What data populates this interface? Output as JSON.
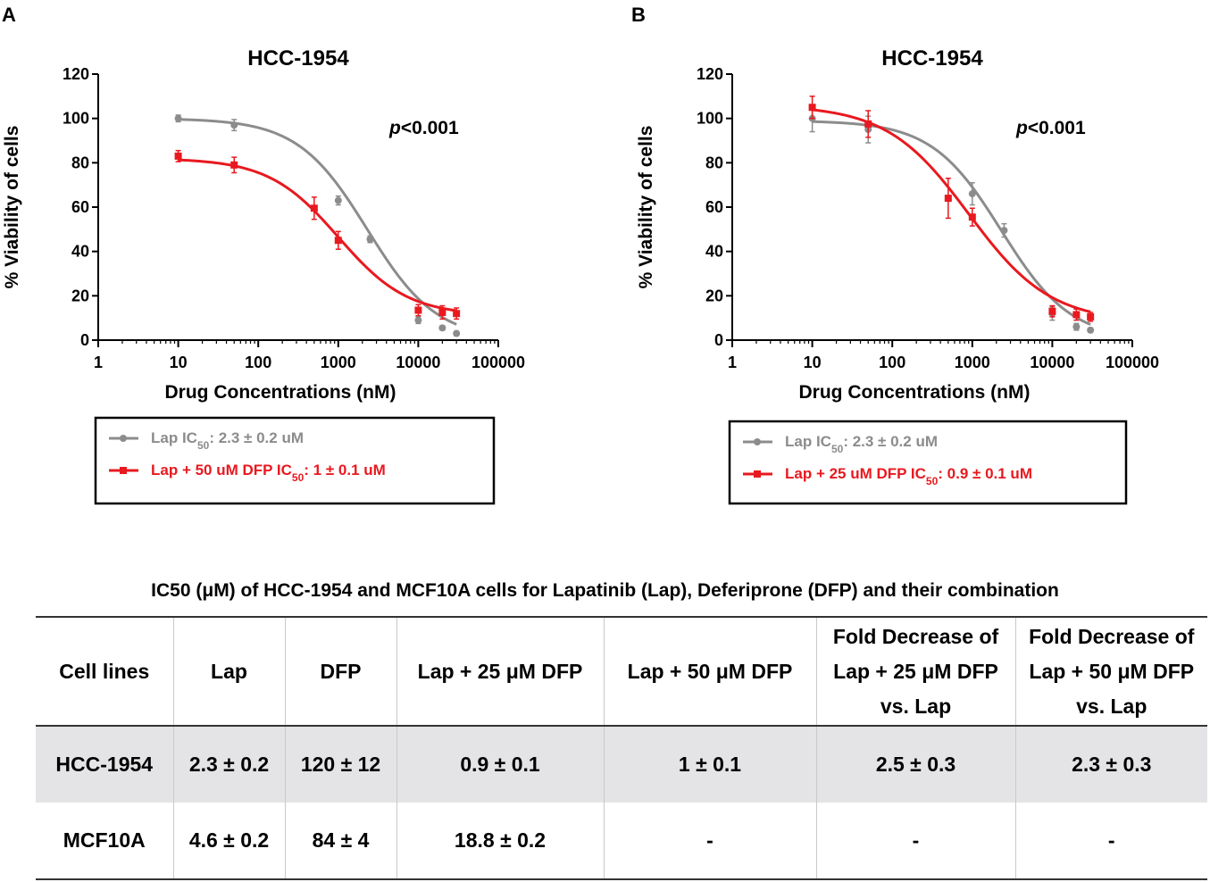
{
  "panels": [
    {
      "letter": "A",
      "title": "HCC-1954",
      "p_value_italic": "p",
      "p_value_rest": "<0.001",
      "xlabel": "Drug Concentrations (nM)",
      "ylabel": "% Viability of cells",
      "x_ticks": [
        "1",
        "10",
        "100",
        "1000",
        "10000",
        "100000"
      ],
      "y_ticks": [
        "0",
        "20",
        "40",
        "60",
        "80",
        "100",
        "120"
      ],
      "legend": [
        {
          "pre": "Lap IC",
          "sub": "50",
          "post": ": 2.3 ± 0.2 uM",
          "color": "#8c8c8c",
          "marker": "circle"
        },
        {
          "pre": "Lap + 50 uM DFP IC",
          "sub": "50",
          "post": ": 1 ± 0.1 uM",
          "color": "#e8191f",
          "marker": "square"
        }
      ]
    },
    {
      "letter": "B",
      "title": "HCC-1954",
      "p_value_italic": "p",
      "p_value_rest": "<0.001",
      "xlabel": "Drug Concentrations (nM)",
      "ylabel": "% Viability of cells",
      "x_ticks": [
        "1",
        "10",
        "100",
        "1000",
        "10000",
        "100000"
      ],
      "y_ticks": [
        "0",
        "20",
        "40",
        "60",
        "80",
        "100",
        "120"
      ],
      "legend": [
        {
          "pre": "Lap IC",
          "sub": "50",
          "post": ": 2.3 ± 0.2 uM",
          "color": "#8c8c8c",
          "marker": "circle"
        },
        {
          "pre": "Lap + 25 uM DFP IC",
          "sub": "50",
          "post": ": 0.9 ± 0.1 uM",
          "color": "#e8191f",
          "marker": "square"
        }
      ]
    }
  ],
  "chart_data": [
    {
      "type": "scatter",
      "title": "HCC-1954",
      "xlabel": "Drug Concentrations (nM)",
      "ylabel": "% Viability of cells",
      "xscale": "log",
      "xlim": [
        1,
        100000
      ],
      "ylim": [
        0,
        120
      ],
      "annotation": "p<0.001",
      "series": [
        {
          "name": "Lap",
          "color": "#8c8c8c",
          "marker": "circle",
          "x": [
            10,
            50,
            1000,
            2500,
            10000,
            20000,
            30000
          ],
          "y": [
            100,
            97,
            63,
            45.5,
            9,
            5.5,
            3
          ],
          "err": [
            1.5,
            2.5,
            2,
            1.5,
            1.5,
            1,
            1
          ],
          "fit": {
            "top": 100,
            "bottom": 0,
            "ic50_nM": 2300,
            "hill": 1
          }
        },
        {
          "name": "Lap + 50 uM DFP",
          "color": "#e8191f",
          "marker": "square",
          "x": [
            10,
            50,
            500,
            1000,
            10000,
            20000,
            30000
          ],
          "y": [
            83,
            79,
            59.5,
            45,
            13.5,
            12.5,
            12
          ],
          "err": [
            2.5,
            3.5,
            5,
            4,
            2.5,
            3,
            2.5
          ],
          "fit": {
            "top": 82,
            "bottom": 11,
            "ic50_nM": 1000,
            "hill": 1
          }
        }
      ]
    },
    {
      "type": "scatter",
      "title": "HCC-1954",
      "xlabel": "Drug Concentrations (nM)",
      "ylabel": "% Viability of cells",
      "xscale": "log",
      "xlim": [
        1,
        100000
      ],
      "ylim": [
        0,
        120
      ],
      "annotation": "p<0.001",
      "series": [
        {
          "name": "Lap",
          "color": "#8c8c8c",
          "marker": "circle",
          "x": [
            10,
            50,
            1000,
            2500,
            10000,
            20000,
            30000
          ],
          "y": [
            100,
            95,
            66,
            49.5,
            12,
            6,
            4.5
          ],
          "err": [
            6,
            6,
            5,
            3,
            3,
            1.5,
            1
          ],
          "fit": {
            "top": 99,
            "bottom": 0,
            "ic50_nM": 2300,
            "hill": 1
          }
        },
        {
          "name": "Lap + 25 uM DFP",
          "color": "#e8191f",
          "marker": "square",
          "x": [
            10,
            50,
            500,
            1000,
            10000,
            20000,
            30000
          ],
          "y": [
            105,
            97.5,
            64,
            55.5,
            13,
            11.5,
            10.5
          ],
          "err": [
            5,
            6,
            9,
            4,
            2.5,
            2.5,
            2
          ],
          "fit": {
            "top": 106,
            "bottom": 8,
            "ic50_nM": 900,
            "hill": 0.85
          }
        }
      ]
    }
  ],
  "table": {
    "title": "IC50 (μM) of HCC-1954 and MCF10A cells for Lapatinib (Lap), Deferiprone (DFP) and their combination",
    "columns": [
      {
        "lines": [
          "Cell lines"
        ]
      },
      {
        "lines": [
          "Lap"
        ]
      },
      {
        "lines": [
          "DFP"
        ]
      },
      {
        "lines": [
          "Lap + 25 μM DFP"
        ]
      },
      {
        "lines": [
          "Lap + 50 μM DFP"
        ]
      },
      {
        "lines": [
          "Fold Decrease of",
          "Lap + 25 μM DFP",
          "vs. Lap"
        ]
      },
      {
        "lines": [
          "Fold Decrease of",
          "Lap + 50 μM DFP",
          "vs. Lap"
        ]
      }
    ],
    "rows": [
      {
        "cells": [
          "HCC-1954",
          "2.3 ± 0.2",
          "120 ± 12",
          "0.9 ± 0.1",
          "1 ± 0.1",
          "2.5 ± 0.3",
          "2.3 ± 0.3"
        ]
      },
      {
        "cells": [
          "MCF10A",
          "4.6 ± 0.2",
          "84 ± 4",
          "18.8 ± 0.2",
          "-",
          "-",
          "-"
        ]
      }
    ]
  }
}
